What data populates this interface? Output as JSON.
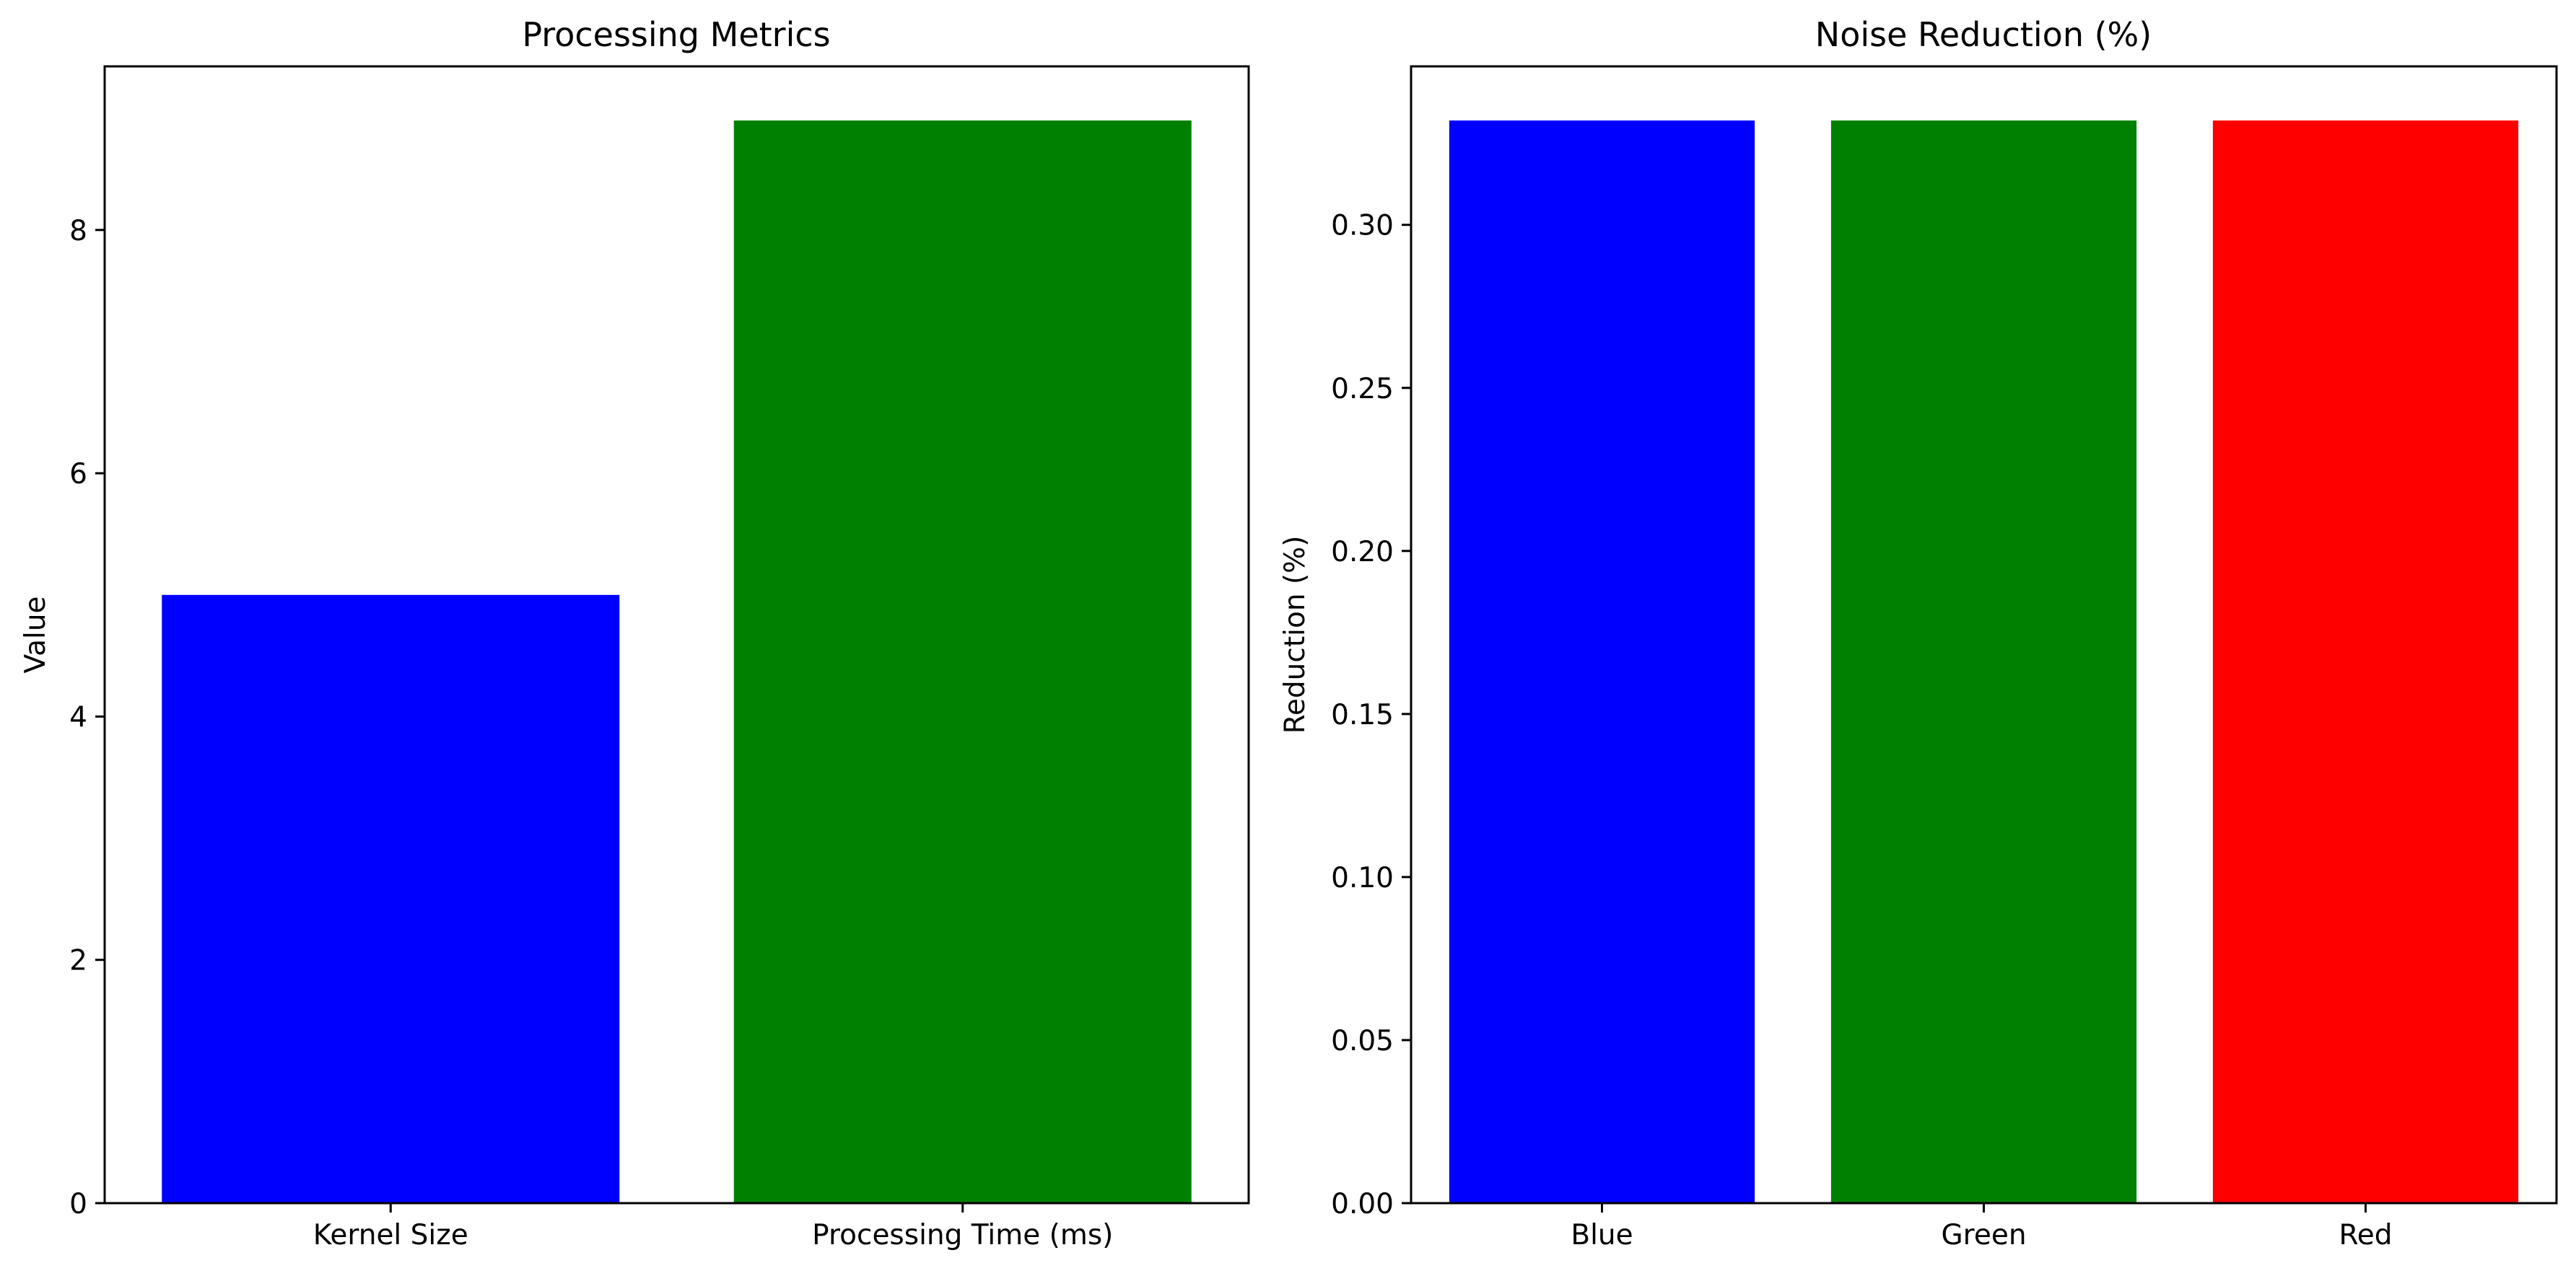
{
  "chart_data": [
    {
      "type": "bar",
      "title": "Processing Metrics",
      "xlabel": "",
      "ylabel": "Value",
      "categories": [
        "Kernel Size",
        "Processing Time (ms)"
      ],
      "values": [
        5,
        8.9
      ],
      "colors": [
        "#0000ff",
        "#008000"
      ],
      "ylim": [
        0,
        9.345
      ],
      "yticks": [
        0,
        2,
        4,
        6,
        8
      ],
      "ytick_labels": [
        "0",
        "2",
        "4",
        "6",
        "8"
      ],
      "grid": false
    },
    {
      "type": "bar",
      "title": "Noise Reduction (%)",
      "xlabel": "",
      "ylabel": "Reduction (%)",
      "categories": [
        "Blue",
        "Green",
        "Red"
      ],
      "values": [
        0.332,
        0.332,
        0.332
      ],
      "colors": [
        "#0000ff",
        "#008000",
        "#ff0000"
      ],
      "ylim": [
        0,
        0.3486
      ],
      "yticks": [
        0,
        0.05,
        0.1,
        0.15,
        0.2,
        0.25,
        0.3
      ],
      "ytick_labels": [
        "0.00",
        "0.05",
        "0.10",
        "0.15",
        "0.20",
        "0.25",
        "0.30"
      ],
      "grid": false
    }
  ]
}
